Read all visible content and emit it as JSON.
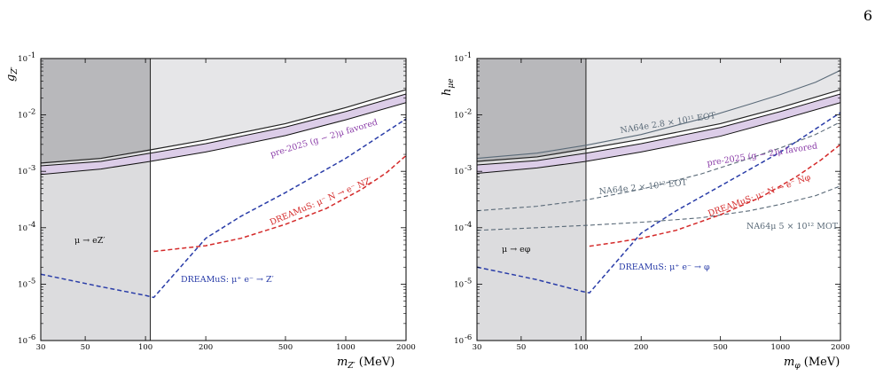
{
  "page_number": "6",
  "colors": {
    "excluded_dark": "#b8b8bb",
    "excluded_light": "#dcdcde",
    "excluded_top": "#e6e6e8",
    "gm2_band": "#dccde8",
    "gm2_text": "#8a3ca8",
    "dreamus_red": "#d42a2a",
    "dreamus_blue": "#2a3da8",
    "na64": "#5a6a78",
    "frame": "#000000"
  },
  "chart_data": [
    {
      "type": "line",
      "xlabel": "m_{Z'} (MeV)",
      "ylabel": "g_{Z'}",
      "x_scale": "log",
      "y_scale": "log",
      "xlim": [
        30,
        2000
      ],
      "ylim": [
        1e-06,
        0.1
      ],
      "x_ticks": [
        30,
        50,
        100,
        200,
        500,
        1000,
        2000
      ],
      "x_tick_labels": [
        "30",
        "50",
        "100",
        "200",
        "500",
        "1000",
        "2000"
      ],
      "y_ticks": [
        1e-06,
        1e-05,
        0.0001,
        0.001,
        0.01,
        0.1
      ],
      "y_tick_labels": [
        "10",
        "10",
        "10",
        "10",
        "10",
        "10"
      ],
      "y_tick_exps": [
        "-6",
        "-5",
        "-4",
        "-3",
        "-2",
        "-1"
      ],
      "vertical_line_x": 105.7,
      "gm2_band": {
        "x": [
          30,
          60,
          105.7,
          200,
          500,
          1000,
          2000
        ],
        "lower": [
          0.00088,
          0.0011,
          0.0015,
          0.0022,
          0.0043,
          0.0082,
          0.0165
        ],
        "upper": [
          0.00125,
          0.0015,
          0.0021,
          0.0031,
          0.0061,
          0.0115,
          0.0235
        ]
      },
      "excluded_upper": {
        "x": [
          30,
          60,
          105.7,
          200,
          500,
          1000,
          2000
        ],
        "y": [
          0.0014,
          0.0017,
          0.0024,
          0.0036,
          0.007,
          0.0135,
          0.028
        ]
      },
      "series": [
        {
          "name": "DREAMuS: μ⁻ N → e⁻ N Z′",
          "color": "#d42a2a",
          "x": [
            110,
            150,
            200,
            300,
            500,
            800,
            1200,
            1600,
            2000
          ],
          "y": [
            3.8e-05,
            4.3e-05,
            4.8e-05,
            6.5e-05,
            0.000115,
            0.00022,
            0.00048,
            0.00095,
            0.0019
          ]
        },
        {
          "name": "DREAMuS: μ⁺ e⁻ → Z′",
          "color": "#2a3da8",
          "x": [
            30,
            60,
            100,
            110,
            200,
            300,
            500,
            1000,
            2000
          ],
          "y": [
            1.5e-05,
            9e-06,
            6.3e-06,
            5.8e-06,
            6.5e-05,
            0.00016,
            0.00042,
            0.0017,
            0.0085
          ]
        }
      ],
      "annotations": {
        "region": "μ → eZ′",
        "gm2": "pre-2025 (g − 2)μ favored",
        "red": "DREAMuS: μ⁻ N → e⁻ NZ′",
        "blue": "DREAMuS: μ⁺ e⁻ → Z′"
      }
    },
    {
      "type": "line",
      "xlabel": "m_φ (MeV)",
      "ylabel": "h_{μe}",
      "x_scale": "log",
      "y_scale": "log",
      "xlim": [
        30,
        2000
      ],
      "ylim": [
        1e-06,
        0.1
      ],
      "x_ticks": [
        30,
        50,
        100,
        200,
        500,
        1000,
        2000
      ],
      "x_tick_labels": [
        "30",
        "50",
        "100",
        "200",
        "500",
        "1000",
        "2000"
      ],
      "y_ticks": [
        1e-06,
        1e-05,
        0.0001,
        0.001,
        0.01,
        0.1
      ],
      "y_tick_labels": [
        "10",
        "10",
        "10",
        "10",
        "10",
        "10"
      ],
      "y_tick_exps": [
        "-6",
        "-5",
        "-4",
        "-3",
        "-2",
        "-1"
      ],
      "vertical_line_x": 105.7,
      "gm2_band": {
        "x": [
          30,
          60,
          105.7,
          200,
          500,
          1000,
          2000
        ],
        "lower": [
          0.00092,
          0.00115,
          0.0015,
          0.0022,
          0.0042,
          0.0082,
          0.0165
        ],
        "upper": [
          0.0013,
          0.00155,
          0.0021,
          0.0031,
          0.006,
          0.0115,
          0.0235
        ]
      },
      "excluded_upper": {
        "x": [
          30,
          60,
          105.7,
          200,
          500,
          1000,
          2000
        ],
        "y": [
          0.0015,
          0.0018,
          0.0025,
          0.0037,
          0.007,
          0.0135,
          0.028
        ]
      },
      "series": [
        {
          "name": "NA64e 2.8 × 10¹¹ EOT",
          "color": "#5a6a78",
          "dash": "solid",
          "x": [
            30,
            60,
            105.7,
            200,
            400,
            700,
            1000,
            1500,
            2000
          ],
          "y": [
            0.0017,
            0.0021,
            0.0029,
            0.0045,
            0.0085,
            0.0155,
            0.023,
            0.038,
            0.062
          ]
        },
        {
          "name": "NA64e 2 × 10¹² EOT",
          "color": "#5a6a78",
          "dash": "dashed",
          "x": [
            30,
            60,
            105.7,
            200,
            400,
            700,
            1000,
            1500,
            2000
          ],
          "y": [
            0.0002,
            0.00024,
            0.00031,
            0.00048,
            0.0009,
            0.0017,
            0.0026,
            0.0045,
            0.0075
          ]
        },
        {
          "name": "NA64μ 5 × 10¹² MOT",
          "color": "#5a6a78",
          "dash": "dashed",
          "x": [
            30,
            60,
            105.7,
            200,
            400,
            700,
            1000,
            1500,
            2000
          ],
          "y": [
            9e-05,
            0.0001,
            0.00011,
            0.000125,
            0.00015,
            0.0002,
            0.00026,
            0.00037,
            0.00055
          ]
        },
        {
          "name": "DREAMuS: μ⁻ N → e⁻ Nφ",
          "color": "#d42a2a",
          "dash": "dashed",
          "x": [
            110,
            150,
            200,
            300,
            500,
            800,
            1200,
            1600,
            2000
          ],
          "y": [
            4.7e-05,
            5.5e-05,
            6.5e-05,
            9e-05,
            0.00017,
            0.00035,
            0.0008,
            0.0016,
            0.003
          ]
        },
        {
          "name": "DREAMuS: μ⁺ e⁻ → φ",
          "color": "#2a3da8",
          "dash": "dashed",
          "x": [
            30,
            60,
            100,
            110,
            200,
            300,
            500,
            1000,
            2000
          ],
          "y": [
            2e-05,
            1.2e-05,
            7.5e-06,
            7e-06,
            8e-05,
            0.0002,
            0.00055,
            0.0022,
            0.011
          ]
        }
      ],
      "annotations": {
        "region": "μ → eφ",
        "gm2": "pre-2025 (g − 2)μ favored",
        "na64e_a": "NA64e 2.8 × 10¹¹ EOT",
        "na64e_b": "NA64e 2 × 10¹² EOT",
        "na64mu": "NA64μ 5 × 10¹² MOT",
        "red": "DREAMuS: μ⁻ N → e⁻ Nφ",
        "blue": "DREAMuS: μ⁺ e⁻ → φ"
      }
    }
  ]
}
